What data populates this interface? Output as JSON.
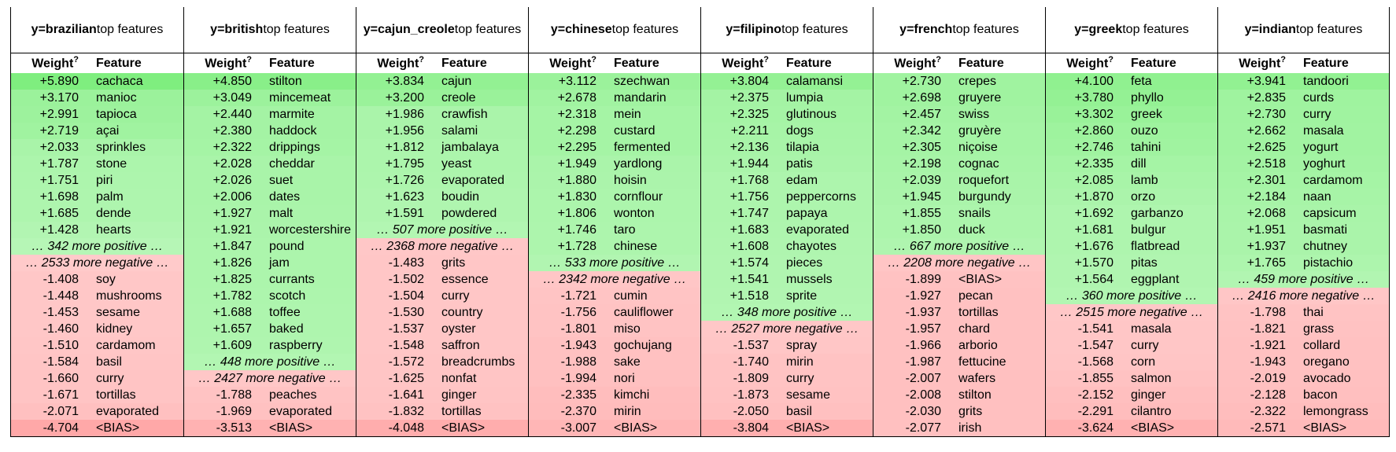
{
  "colors": {
    "pos_max": "#7fee7f",
    "pos_min": "#d8fbd8",
    "neg_max": "#ff9f9f",
    "neg_min": "#ffe5e5"
  },
  "labels": {
    "suffix": "top features",
    "weight": "Weight",
    "weight_sup": "?",
    "feature": "Feature"
  },
  "tables": [
    {
      "label": "y=brazilian",
      "rows": [
        {
          "w": "+5.890",
          "f": "cachaca",
          "v": 5.89
        },
        {
          "w": "+3.170",
          "f": "manioc",
          "v": 3.17
        },
        {
          "w": "+2.991",
          "f": "tapioca",
          "v": 2.991
        },
        {
          "w": "+2.719",
          "f": "açai",
          "v": 2.719
        },
        {
          "w": "+2.033",
          "f": "sprinkles",
          "v": 2.033
        },
        {
          "w": "+1.787",
          "f": "stone",
          "v": 1.787
        },
        {
          "w": "+1.751",
          "f": "piri",
          "v": 1.751
        },
        {
          "w": "+1.698",
          "f": "palm",
          "v": 1.698
        },
        {
          "w": "+1.685",
          "f": "dende",
          "v": 1.685
        },
        {
          "w": "+1.428",
          "f": "hearts",
          "v": 1.428
        },
        {
          "more": "… 342 more positive …",
          "v": 1.2
        },
        {
          "more": "… 2533 more negative …",
          "v": -1.2
        },
        {
          "w": "-1.408",
          "f": "soy",
          "v": -1.408
        },
        {
          "w": "-1.448",
          "f": "mushrooms",
          "v": -1.448
        },
        {
          "w": "-1.453",
          "f": "sesame",
          "v": -1.453
        },
        {
          "w": "-1.460",
          "f": "kidney",
          "v": -1.46
        },
        {
          "w": "-1.510",
          "f": "cardamom",
          "v": -1.51
        },
        {
          "w": "-1.584",
          "f": "basil",
          "v": -1.584
        },
        {
          "w": "-1.660",
          "f": "curry",
          "v": -1.66
        },
        {
          "w": "-1.671",
          "f": "tortillas",
          "v": -1.671
        },
        {
          "w": "-2.071",
          "f": "evaporated",
          "v": -2.071
        },
        {
          "w": "-4.704",
          "f": "<BIAS>",
          "v": -4.704
        }
      ]
    },
    {
      "label": "y=british",
      "rows": [
        {
          "w": "+4.850",
          "f": "stilton",
          "v": 4.85
        },
        {
          "w": "+3.049",
          "f": "mincemeat",
          "v": 3.049
        },
        {
          "w": "+2.440",
          "f": "marmite",
          "v": 2.44
        },
        {
          "w": "+2.380",
          "f": "haddock",
          "v": 2.38
        },
        {
          "w": "+2.322",
          "f": "drippings",
          "v": 2.322
        },
        {
          "w": "+2.028",
          "f": "cheddar",
          "v": 2.028
        },
        {
          "w": "+2.026",
          "f": "suet",
          "v": 2.026
        },
        {
          "w": "+2.006",
          "f": "dates",
          "v": 2.006
        },
        {
          "w": "+1.927",
          "f": "malt",
          "v": 1.927
        },
        {
          "w": "+1.921",
          "f": "worcestershire",
          "v": 1.921
        },
        {
          "w": "+1.847",
          "f": "pound",
          "v": 1.847
        },
        {
          "w": "+1.826",
          "f": "jam",
          "v": 1.826
        },
        {
          "w": "+1.825",
          "f": "currants",
          "v": 1.825
        },
        {
          "w": "+1.782",
          "f": "scotch",
          "v": 1.782
        },
        {
          "w": "+1.688",
          "f": "toffee",
          "v": 1.688
        },
        {
          "w": "+1.657",
          "f": "baked",
          "v": 1.657
        },
        {
          "w": "+1.609",
          "f": "raspberry",
          "v": 1.609
        },
        {
          "more": "… 448 more positive …",
          "v": 1.4
        },
        {
          "more": "… 2427 more negative …",
          "v": -1.4
        },
        {
          "w": "-1.788",
          "f": "peaches",
          "v": -1.788
        },
        {
          "w": "-1.969",
          "f": "evaporated",
          "v": -1.969
        },
        {
          "w": "-3.513",
          "f": "<BIAS>",
          "v": -3.513
        }
      ]
    },
    {
      "label": "y=cajun_creole",
      "rows": [
        {
          "w": "+3.834",
          "f": "cajun",
          "v": 3.834
        },
        {
          "w": "+3.200",
          "f": "creole",
          "v": 3.2
        },
        {
          "w": "+1.986",
          "f": "crawfish",
          "v": 1.986
        },
        {
          "w": "+1.956",
          "f": "salami",
          "v": 1.956
        },
        {
          "w": "+1.812",
          "f": "jambalaya",
          "v": 1.812
        },
        {
          "w": "+1.795",
          "f": "yeast",
          "v": 1.795
        },
        {
          "w": "+1.726",
          "f": "evaporated",
          "v": 1.726
        },
        {
          "w": "+1.623",
          "f": "boudin",
          "v": 1.623
        },
        {
          "w": "+1.591",
          "f": "powdered",
          "v": 1.591
        },
        {
          "more": "… 507 more positive …",
          "v": 1.4
        },
        {
          "more": "… 2368 more negative …",
          "v": -1.4
        },
        {
          "w": "-1.483",
          "f": "grits",
          "v": -1.483
        },
        {
          "w": "-1.502",
          "f": "essence",
          "v": -1.502
        },
        {
          "w": "-1.504",
          "f": "curry",
          "v": -1.504
        },
        {
          "w": "-1.530",
          "f": "country",
          "v": -1.53
        },
        {
          "w": "-1.537",
          "f": "oyster",
          "v": -1.537
        },
        {
          "w": "-1.548",
          "f": "saffron",
          "v": -1.548
        },
        {
          "w": "-1.572",
          "f": "breadcrumbs",
          "v": -1.572
        },
        {
          "w": "-1.625",
          "f": "nonfat",
          "v": -1.625
        },
        {
          "w": "-1.641",
          "f": "ginger",
          "v": -1.641
        },
        {
          "w": "-1.832",
          "f": "tortillas",
          "v": -1.832
        },
        {
          "w": "-4.048",
          "f": "<BIAS>",
          "v": -4.048
        }
      ]
    },
    {
      "label": "y=chinese",
      "rows": [
        {
          "w": "+3.112",
          "f": "szechwan",
          "v": 3.112
        },
        {
          "w": "+2.678",
          "f": "mandarin",
          "v": 2.678
        },
        {
          "w": "+2.318",
          "f": "mein",
          "v": 2.318
        },
        {
          "w": "+2.298",
          "f": "custard",
          "v": 2.298
        },
        {
          "w": "+2.295",
          "f": "fermented",
          "v": 2.295
        },
        {
          "w": "+1.949",
          "f": "yardlong",
          "v": 1.949
        },
        {
          "w": "+1.880",
          "f": "hoisin",
          "v": 1.88
        },
        {
          "w": "+1.830",
          "f": "cornflour",
          "v": 1.83
        },
        {
          "w": "+1.806",
          "f": "wonton",
          "v": 1.806
        },
        {
          "w": "+1.746",
          "f": "taro",
          "v": 1.746
        },
        {
          "w": "+1.728",
          "f": "chinese",
          "v": 1.728
        },
        {
          "more": "… 533 more positive …",
          "v": 1.5
        },
        {
          "more": "… 2342 more negative …",
          "v": -1.5
        },
        {
          "w": "-1.721",
          "f": "cumin",
          "v": -1.721
        },
        {
          "w": "-1.756",
          "f": "cauliflower",
          "v": -1.756
        },
        {
          "w": "-1.801",
          "f": "miso",
          "v": -1.801
        },
        {
          "w": "-1.943",
          "f": "gochujang",
          "v": -1.943
        },
        {
          "w": "-1.988",
          "f": "sake",
          "v": -1.988
        },
        {
          "w": "-1.994",
          "f": "nori",
          "v": -1.994
        },
        {
          "w": "-2.335",
          "f": "kimchi",
          "v": -2.335
        },
        {
          "w": "-2.370",
          "f": "mirin",
          "v": -2.37
        },
        {
          "w": "-3.007",
          "f": "<BIAS>",
          "v": -3.007
        }
      ]
    },
    {
      "label": "y=filipino",
      "rows": [
        {
          "w": "+3.804",
          "f": "calamansi",
          "v": 3.804
        },
        {
          "w": "+2.375",
          "f": "lumpia",
          "v": 2.375
        },
        {
          "w": "+2.325",
          "f": "glutinous",
          "v": 2.325
        },
        {
          "w": "+2.211",
          "f": "dogs",
          "v": 2.211
        },
        {
          "w": "+2.136",
          "f": "tilapia",
          "v": 2.136
        },
        {
          "w": "+1.944",
          "f": "patis",
          "v": 1.944
        },
        {
          "w": "+1.768",
          "f": "edam",
          "v": 1.768
        },
        {
          "w": "+1.756",
          "f": "peppercorns",
          "v": 1.756
        },
        {
          "w": "+1.747",
          "f": "papaya",
          "v": 1.747
        },
        {
          "w": "+1.683",
          "f": "evaporated",
          "v": 1.683
        },
        {
          "w": "+1.608",
          "f": "chayotes",
          "v": 1.608
        },
        {
          "w": "+1.574",
          "f": "pieces",
          "v": 1.574
        },
        {
          "w": "+1.541",
          "f": "mussels",
          "v": 1.541
        },
        {
          "w": "+1.518",
          "f": "sprite",
          "v": 1.518
        },
        {
          "more": "… 348 more positive …",
          "v": 1.4
        },
        {
          "more": "… 2527 more negative …",
          "v": -1.4
        },
        {
          "w": "-1.537",
          "f": "spray",
          "v": -1.537
        },
        {
          "w": "-1.740",
          "f": "mirin",
          "v": -1.74
        },
        {
          "w": "-1.809",
          "f": "curry",
          "v": -1.809
        },
        {
          "w": "-1.873",
          "f": "sesame",
          "v": -1.873
        },
        {
          "w": "-2.050",
          "f": "basil",
          "v": -2.05
        },
        {
          "w": "-3.804",
          "f": "<BIAS>",
          "v": -3.804
        }
      ]
    },
    {
      "label": "y=french",
      "rows": [
        {
          "w": "+2.730",
          "f": "crepes",
          "v": 2.73
        },
        {
          "w": "+2.698",
          "f": "gruyere",
          "v": 2.698
        },
        {
          "w": "+2.457",
          "f": "swiss",
          "v": 2.457
        },
        {
          "w": "+2.342",
          "f": "gruyère",
          "v": 2.342
        },
        {
          "w": "+2.305",
          "f": "niçoise",
          "v": 2.305
        },
        {
          "w": "+2.198",
          "f": "cognac",
          "v": 2.198
        },
        {
          "w": "+2.039",
          "f": "roquefort",
          "v": 2.039
        },
        {
          "w": "+1.945",
          "f": "burgundy",
          "v": 1.945
        },
        {
          "w": "+1.855",
          "f": "snails",
          "v": 1.855
        },
        {
          "w": "+1.850",
          "f": "duck",
          "v": 1.85
        },
        {
          "more": "… 667 more positive …",
          "v": 1.6
        },
        {
          "more": "… 2208 more negative …",
          "v": -1.6
        },
        {
          "w": "-1.899",
          "f": "<BIAS>",
          "v": -1.899
        },
        {
          "w": "-1.927",
          "f": "pecan",
          "v": -1.927
        },
        {
          "w": "-1.937",
          "f": "tortillas",
          "v": -1.937
        },
        {
          "w": "-1.957",
          "f": "chard",
          "v": -1.957
        },
        {
          "w": "-1.966",
          "f": "arborio",
          "v": -1.966
        },
        {
          "w": "-1.987",
          "f": "fettucine",
          "v": -1.987
        },
        {
          "w": "-2.007",
          "f": "wafers",
          "v": -2.007
        },
        {
          "w": "-2.008",
          "f": "stilton",
          "v": -2.008
        },
        {
          "w": "-2.030",
          "f": "grits",
          "v": -2.03
        },
        {
          "w": "-2.077",
          "f": "irish",
          "v": -2.077
        }
      ]
    },
    {
      "label": "y=greek",
      "rows": [
        {
          "w": "+4.100",
          "f": "feta",
          "v": 4.1
        },
        {
          "w": "+3.780",
          "f": "phyllo",
          "v": 3.78
        },
        {
          "w": "+3.302",
          "f": "greek",
          "v": 3.302
        },
        {
          "w": "+2.860",
          "f": "ouzo",
          "v": 2.86
        },
        {
          "w": "+2.746",
          "f": "tahini",
          "v": 2.746
        },
        {
          "w": "+2.335",
          "f": "dill",
          "v": 2.335
        },
        {
          "w": "+2.085",
          "f": "lamb",
          "v": 2.085
        },
        {
          "w": "+1.870",
          "f": "orzo",
          "v": 1.87
        },
        {
          "w": "+1.692",
          "f": "garbanzo",
          "v": 1.692
        },
        {
          "w": "+1.681",
          "f": "bulgur",
          "v": 1.681
        },
        {
          "w": "+1.676",
          "f": "flatbread",
          "v": 1.676
        },
        {
          "w": "+1.570",
          "f": "pitas",
          "v": 1.57
        },
        {
          "w": "+1.564",
          "f": "eggplant",
          "v": 1.564
        },
        {
          "more": "… 360 more positive …",
          "v": 1.4
        },
        {
          "more": "… 2515 more negative …",
          "v": -1.4
        },
        {
          "w": "-1.541",
          "f": "masala",
          "v": -1.541
        },
        {
          "w": "-1.547",
          "f": "curry",
          "v": -1.547
        },
        {
          "w": "-1.568",
          "f": "corn",
          "v": -1.568
        },
        {
          "w": "-1.855",
          "f": "salmon",
          "v": -1.855
        },
        {
          "w": "-2.152",
          "f": "ginger",
          "v": -2.152
        },
        {
          "w": "-2.291",
          "f": "cilantro",
          "v": -2.291
        },
        {
          "w": "-3.624",
          "f": "<BIAS>",
          "v": -3.624
        }
      ]
    },
    {
      "label": "y=indian",
      "rows": [
        {
          "w": "+3.941",
          "f": "tandoori",
          "v": 3.941
        },
        {
          "w": "+2.835",
          "f": "curds",
          "v": 2.835
        },
        {
          "w": "+2.730",
          "f": "curry",
          "v": 2.73
        },
        {
          "w": "+2.662",
          "f": "masala",
          "v": 2.662
        },
        {
          "w": "+2.625",
          "f": "yogurt",
          "v": 2.625
        },
        {
          "w": "+2.518",
          "f": "yoghurt",
          "v": 2.518
        },
        {
          "w": "+2.301",
          "f": "cardamom",
          "v": 2.301
        },
        {
          "w": "+2.184",
          "f": "naan",
          "v": 2.184
        },
        {
          "w": "+2.068",
          "f": "capsicum",
          "v": 2.068
        },
        {
          "w": "+1.951",
          "f": "basmati",
          "v": 1.951
        },
        {
          "w": "+1.937",
          "f": "chutney",
          "v": 1.937
        },
        {
          "w": "+1.765",
          "f": "pistachio",
          "v": 1.765
        },
        {
          "more": "… 459 more positive …",
          "v": 1.5
        },
        {
          "more": "… 2416 more negative …",
          "v": -1.5
        },
        {
          "w": "-1.798",
          "f": "thai",
          "v": -1.798
        },
        {
          "w": "-1.821",
          "f": "grass",
          "v": -1.821
        },
        {
          "w": "-1.921",
          "f": "collard",
          "v": -1.921
        },
        {
          "w": "-1.943",
          "f": "oregano",
          "v": -1.943
        },
        {
          "w": "-2.019",
          "f": "avocado",
          "v": -2.019
        },
        {
          "w": "-2.128",
          "f": "bacon",
          "v": -2.128
        },
        {
          "w": "-2.322",
          "f": "lemongrass",
          "v": -2.322
        },
        {
          "w": "-2.571",
          "f": "<BIAS>",
          "v": -2.571
        }
      ]
    }
  ]
}
